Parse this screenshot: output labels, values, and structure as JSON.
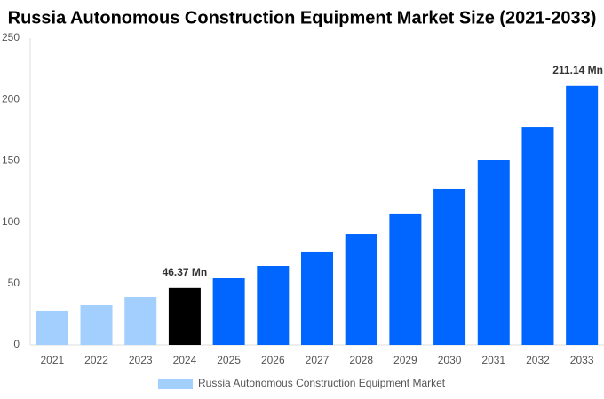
{
  "chart_data": {
    "type": "bar",
    "title": "Russia Autonomous Construction Equipment Market Size (2021-2033)",
    "categories": [
      "2021",
      "2022",
      "2023",
      "2024",
      "2025",
      "2026",
      "2027",
      "2028",
      "2029",
      "2030",
      "2031",
      "2032",
      "2033"
    ],
    "series": [
      {
        "name": "Russia Autonomous Construction Equipment Market",
        "color": "#a3cfff",
        "colors": [
          "#a3cfff",
          "#a3cfff",
          "#a3cfff",
          "#000000",
          "#0066ff",
          "#0066ff",
          "#0066ff",
          "#0066ff",
          "#0066ff",
          "#0066ff",
          "#0066ff",
          "#0066ff",
          "#0066ff"
        ],
        "values": [
          27.5,
          32.5,
          39,
          46.37,
          54.2,
          64.3,
          75.9,
          90.3,
          107,
          127.2,
          150.3,
          177.7,
          211.14
        ],
        "value_labels": [
          null,
          null,
          null,
          "46.37 Mn",
          null,
          null,
          null,
          null,
          null,
          null,
          null,
          null,
          "211.14 Mn"
        ]
      }
    ],
    "ylim": [
      0,
      250
    ],
    "yticks": [
      0,
      50,
      100,
      150,
      200,
      250
    ],
    "grid": false
  }
}
